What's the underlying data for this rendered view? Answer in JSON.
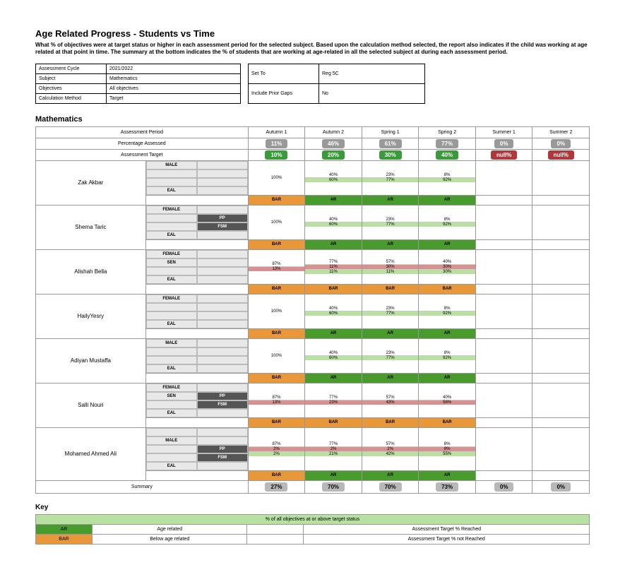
{
  "title": "Age Related Progress - Students vs Time",
  "description": "What % of objectives were at target status or higher in each assessment period for the selected subject. Based upon the calculation method selected, the report also indicates if the child was working at age related at that point in time. The summary at the bottom indicates the % of students that are working at age-related in all the selected subject at during each assessment period.",
  "meta_left": [
    {
      "label": "Assessment Cycle",
      "value": "2021/2022"
    },
    {
      "label": "Subject",
      "value": "Mathematics"
    },
    {
      "label": "Objectives",
      "value": "All objectives"
    },
    {
      "label": "Calculation Method",
      "value": "Target"
    }
  ],
  "meta_right": [
    {
      "label": "Set To",
      "value": "Reg 5C"
    },
    {
      "label": "Include Prior Gaps",
      "value": "No"
    }
  ],
  "subject": "Mathematics",
  "headers": {
    "assessment_period": "Assessment Period",
    "percentage_assessed": "Percentage Assessed",
    "assessment_target": "Assessment Target"
  },
  "periods": [
    "Autumn 1",
    "Autumn 2",
    "Spring 1",
    "Spring 2",
    "Summer 1",
    "Summer 2"
  ],
  "pct_assessed": [
    "11%",
    "46%",
    "61%",
    "77%",
    "0%",
    "0%"
  ],
  "targets": [
    {
      "txt": "10%",
      "cls": "b-green"
    },
    {
      "txt": "20%",
      "cls": "b-green"
    },
    {
      "txt": "30%",
      "cls": "b-green"
    },
    {
      "txt": "40%",
      "cls": "b-green"
    },
    {
      "txt": "null%",
      "cls": "b-red"
    },
    {
      "txt": "null%",
      "cls": "b-red"
    }
  ],
  "students": [
    {
      "name": "Zak Akbar",
      "tags": [
        [
          "MALE",
          ""
        ],
        [
          "",
          ""
        ],
        [
          "",
          ""
        ],
        [
          "EAL",
          ""
        ]
      ],
      "cells": [
        [
          {
            "c": "seg-white",
            "t": "100%"
          }
        ],
        [
          {
            "c": "seg-white",
            "t": "40%"
          },
          {
            "c": "seg-lgreen",
            "t": "60%"
          }
        ],
        [
          {
            "c": "seg-white",
            "t": "23%"
          },
          {
            "c": "seg-lgreen",
            "t": "77%"
          }
        ],
        [
          {
            "c": "seg-white",
            "t": "8%"
          },
          {
            "c": "seg-lgreen",
            "t": "92%"
          }
        ],
        [],
        []
      ],
      "bars": [
        "BAR",
        "AR",
        "AR",
        "AR",
        "",
        ""
      ]
    },
    {
      "name": "Shema Taric",
      "tags": [
        [
          "FEMALE",
          ""
        ],
        [
          "",
          "PP"
        ],
        [
          "",
          "FSM"
        ],
        [
          "EAL",
          ""
        ]
      ],
      "cells": [
        [
          {
            "c": "seg-white",
            "t": "100%"
          }
        ],
        [
          {
            "c": "seg-white",
            "t": "40%"
          },
          {
            "c": "seg-lgreen",
            "t": "60%"
          }
        ],
        [
          {
            "c": "seg-white",
            "t": "23%"
          },
          {
            "c": "seg-lgreen",
            "t": "77%"
          }
        ],
        [
          {
            "c": "seg-white",
            "t": "8%"
          },
          {
            "c": "seg-lgreen",
            "t": "92%"
          }
        ],
        [],
        []
      ],
      "bars": [
        "BAR",
        "AR",
        "AR",
        "AR",
        "",
        ""
      ]
    },
    {
      "name": "Alishah Bella",
      "tags": [
        [
          "FEMALE",
          ""
        ],
        [
          "SEN",
          ""
        ],
        [
          "",
          ""
        ],
        [
          "EAL",
          ""
        ]
      ],
      "cells": [
        [
          {
            "c": "seg-white",
            "t": "87%"
          },
          {
            "c": "seg-pink",
            "t": "13%"
          }
        ],
        [
          {
            "c": "seg-white",
            "t": "77%"
          },
          {
            "c": "seg-pink",
            "t": "11%"
          },
          {
            "c": "seg-lgreen",
            "t": "11%"
          }
        ],
        [
          {
            "c": "seg-white",
            "t": "57%"
          },
          {
            "c": "seg-pink",
            "t": "30%"
          },
          {
            "c": "seg-lgreen",
            "t": "11%"
          }
        ],
        [
          {
            "c": "seg-white",
            "t": "40%"
          },
          {
            "c": "seg-pink",
            "t": "30%"
          },
          {
            "c": "seg-lgreen",
            "t": "30%"
          }
        ],
        [],
        []
      ],
      "bars": [
        "BAR",
        "BAR",
        "BAR",
        "BAR",
        "",
        ""
      ]
    },
    {
      "name": "HailyYesry",
      "tags": [
        [
          "FEMALE",
          ""
        ],
        [
          "",
          ""
        ],
        [
          "",
          ""
        ],
        [
          "EAL",
          ""
        ]
      ],
      "cells": [
        [
          {
            "c": "seg-white",
            "t": "100%"
          }
        ],
        [
          {
            "c": "seg-white",
            "t": "40%"
          },
          {
            "c": "seg-lgreen",
            "t": "60%"
          }
        ],
        [
          {
            "c": "seg-white",
            "t": "23%"
          },
          {
            "c": "seg-lgreen",
            "t": "77%"
          }
        ],
        [
          {
            "c": "seg-white",
            "t": "8%"
          },
          {
            "c": "seg-lgreen",
            "t": "92%"
          }
        ],
        [],
        []
      ],
      "bars": [
        "BAR",
        "AR",
        "AR",
        "AR",
        "",
        ""
      ]
    },
    {
      "name": "Adiyan Mustaffa",
      "tags": [
        [
          "MALE",
          ""
        ],
        [
          "",
          ""
        ],
        [
          "",
          ""
        ],
        [
          "EAL",
          ""
        ]
      ],
      "cells": [
        [
          {
            "c": "seg-white",
            "t": "100%"
          }
        ],
        [
          {
            "c": "seg-white",
            "t": "40%"
          },
          {
            "c": "seg-lgreen",
            "t": "60%"
          }
        ],
        [
          {
            "c": "seg-white",
            "t": "23%"
          },
          {
            "c": "seg-lgreen",
            "t": "77%"
          }
        ],
        [
          {
            "c": "seg-white",
            "t": "8%"
          },
          {
            "c": "seg-lgreen",
            "t": "92%"
          }
        ],
        [],
        []
      ],
      "bars": [
        "BAR",
        "AR",
        "AR",
        "AR",
        "",
        ""
      ]
    },
    {
      "name": "Salli Nouri",
      "tags": [
        [
          "FEMALE",
          ""
        ],
        [
          "SEN",
          "PP"
        ],
        [
          "",
          "FSM"
        ],
        [
          "EAL",
          ""
        ]
      ],
      "cells": [
        [
          {
            "c": "seg-white",
            "t": "87%"
          },
          {
            "c": "seg-pink",
            "t": "13%"
          }
        ],
        [
          {
            "c": "seg-white",
            "t": "77%"
          },
          {
            "c": "seg-pink",
            "t": "23%"
          }
        ],
        [
          {
            "c": "seg-white",
            "t": "57%"
          },
          {
            "c": "seg-pink",
            "t": "43%"
          }
        ],
        [
          {
            "c": "seg-white",
            "t": "40%"
          },
          {
            "c": "seg-pink",
            "t": "58%"
          }
        ],
        [],
        []
      ],
      "bars": [
        "BAR",
        "BAR",
        "BAR",
        "BAR",
        "",
        ""
      ]
    },
    {
      "name": "Mohamed Ahmed Ali",
      "tags": [
        [
          "",
          ""
        ],
        [
          "MALE",
          ""
        ],
        [
          "",
          "PP"
        ],
        [
          "",
          "FSM"
        ],
        [
          "EAL",
          ""
        ]
      ],
      "cells": [
        [
          {
            "c": "seg-white",
            "t": "87%"
          },
          {
            "c": "seg-pink",
            "t": "2%"
          },
          {
            "c": "seg-lgreen",
            "t": "2%"
          }
        ],
        [
          {
            "c": "seg-white",
            "t": "77%"
          },
          {
            "c": "seg-pink",
            "t": "2%"
          },
          {
            "c": "seg-lgreen",
            "t": "21%"
          }
        ],
        [
          {
            "c": "seg-white",
            "t": "57%"
          },
          {
            "c": "seg-pink",
            "t": "2%"
          },
          {
            "c": "seg-lgreen",
            "t": "42%"
          }
        ],
        [
          {
            "c": "seg-white",
            "t": "8%"
          },
          {
            "c": "seg-pink",
            "t": "8%"
          },
          {
            "c": "seg-lgreen",
            "t": "55%"
          }
        ],
        [],
        []
      ],
      "bars": [
        "BAR",
        "AR",
        "AR",
        "AR",
        "",
        ""
      ]
    }
  ],
  "summary_label": "Summary",
  "summary": [
    "27%",
    "70%",
    "70%",
    "73%",
    "0%",
    "0%"
  ],
  "key": {
    "title": "Key",
    "header": "% of all objectives at or above target status",
    "rows": [
      {
        "code": "AR",
        "cls": "k-ar",
        "desc": "Age related",
        "right": "Assessment Target % Reached"
      },
      {
        "code": "BAR",
        "cls": "k-bar",
        "desc": "Below age related",
        "right": "Assessment Target % not Reached"
      }
    ]
  }
}
